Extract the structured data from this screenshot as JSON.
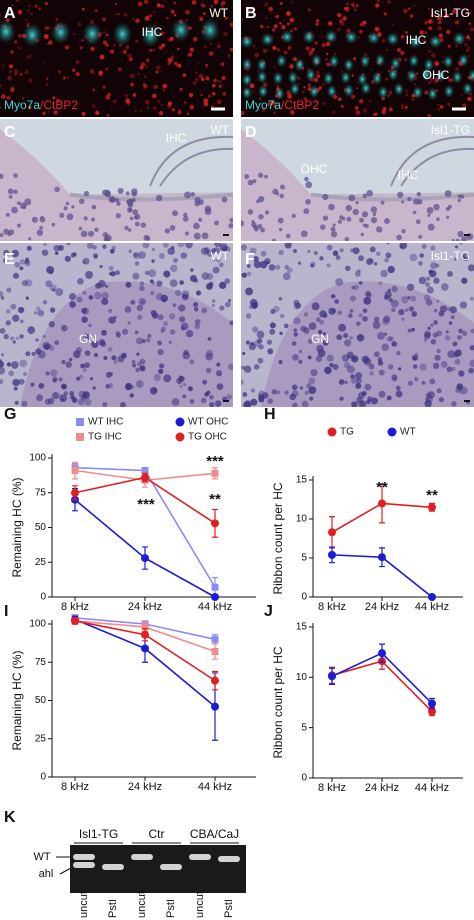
{
  "images": [
    {
      "letter": "A",
      "texts": [
        "WT",
        "IHC"
      ],
      "stain": [
        "Myo7a",
        "/CtBP2"
      ]
    },
    {
      "letter": "B",
      "texts": [
        "Isl1-TG",
        "IHC",
        "OHC"
      ],
      "stain": [
        "Myo7a",
        "/CtBP2"
      ]
    },
    {
      "letter": "C",
      "texts": [
        "WT",
        "IHC"
      ]
    },
    {
      "letter": "D",
      "texts": [
        "Isl1-TG",
        "OHC",
        "IHC"
      ]
    },
    {
      "letter": "E",
      "texts": [
        "WT",
        "GN"
      ]
    },
    {
      "letter": "F",
      "texts": [
        "Isl1-TG",
        "GN"
      ]
    }
  ],
  "chart_data": [
    {
      "type": "line",
      "panel_label": "G",
      "y_label": "Remaining HC (%)",
      "categories": [
        "8 kHz",
        "24 kHz",
        "44 kHz"
      ],
      "ylim": [
        0,
        100
      ],
      "yticks": [
        0,
        25,
        50,
        75,
        100
      ],
      "legend": true,
      "series": [
        {
          "name": "WT IHC",
          "color": "#8b8bf5",
          "marker": "square",
          "values": [
            93,
            91,
            7
          ],
          "errors": [
            3,
            2,
            7
          ]
        },
        {
          "name": "WT OHC",
          "color": "#1c1cd6",
          "marker": "circle",
          "values": [
            70,
            28,
            0
          ],
          "errors": [
            8,
            8,
            0
          ]
        },
        {
          "name": "TG IHC",
          "color": "#ef8c8c",
          "marker": "square",
          "values": [
            91,
            84,
            89
          ],
          "errors": [
            6,
            5,
            4
          ]
        },
        {
          "name": "TG OHC",
          "color": "#e01f1f",
          "marker": "circle",
          "values": [
            75,
            86,
            53
          ],
          "errors": [
            5,
            3,
            10
          ]
        }
      ],
      "annotations": [
        "***",
        "***",
        "**"
      ]
    },
    {
      "type": "line",
      "panel_label": "H",
      "y_label": "Ribbon count per HC",
      "categories": [
        "8 kHz",
        "24 kHz",
        "44 kHz"
      ],
      "ylim": [
        0,
        15
      ],
      "yticks": [
        0,
        5,
        10,
        15
      ],
      "legend": true,
      "series": [
        {
          "name": "TG",
          "color": "#e01f1f",
          "marker": "circle",
          "values": [
            8.3,
            12,
            11.5
          ],
          "errors": [
            2,
            2.5,
            0.5
          ]
        },
        {
          "name": "WT",
          "color": "#1c1cd6",
          "marker": "circle",
          "values": [
            5.4,
            5.1,
            0
          ],
          "errors": [
            1,
            1.2,
            0
          ]
        }
      ],
      "annotations": [
        "**",
        "**"
      ]
    },
    {
      "type": "line",
      "panel_label": "I",
      "y_label": "Remaining HC (%)",
      "categories": [
        "8 kHz",
        "24 kHz",
        "44 kHz"
      ],
      "ylim": [
        0,
        100
      ],
      "yticks": [
        0,
        25,
        50,
        75,
        100
      ],
      "legend": false,
      "series": [
        {
          "name": "WT IHC",
          "color": "#8b8bf5",
          "marker": "square",
          "values": [
            104,
            100,
            90
          ],
          "errors": [
            2,
            2,
            3
          ]
        },
        {
          "name": "WT OHC",
          "color": "#1c1cd6",
          "marker": "circle",
          "values": [
            103,
            84,
            46
          ],
          "errors": [
            2,
            9,
            22
          ]
        },
        {
          "name": "TG IHC",
          "color": "#ef8c8c",
          "marker": "square",
          "values": [
            102,
            98,
            82
          ],
          "errors": [
            2,
            3,
            5
          ]
        },
        {
          "name": "TG OHC",
          "color": "#e01f1f",
          "marker": "circle",
          "values": [
            102,
            93,
            63
          ],
          "errors": [
            2,
            4,
            6
          ]
        }
      ]
    },
    {
      "type": "line",
      "panel_label": "J",
      "y_label": "Ribbon count per HC",
      "categories": [
        "8 kHz",
        "24 kHz",
        "44 kHz"
      ],
      "ylim": [
        0,
        15
      ],
      "yticks": [
        0,
        5,
        10,
        15
      ],
      "legend": false,
      "series": [
        {
          "name": "TG",
          "color": "#e01f1f",
          "marker": "circle",
          "values": [
            10.2,
            11.6,
            6.6
          ],
          "errors": [
            0.8,
            0.8,
            0.4
          ]
        },
        {
          "name": "WT",
          "color": "#1c1cd6",
          "marker": "circle",
          "values": [
            10.1,
            12.4,
            7.4
          ],
          "errors": [
            0.8,
            0.9,
            0.5
          ]
        }
      ]
    }
  ],
  "gel": {
    "letter": "K",
    "groups": [
      "Isl1-TG",
      "Ctr",
      "CBA/CaJ"
    ],
    "bands": [
      "WT",
      "ahl"
    ],
    "lanes": [
      "uncut",
      "PstI",
      "uncut",
      "PstI",
      "uncut",
      "PstI"
    ]
  }
}
